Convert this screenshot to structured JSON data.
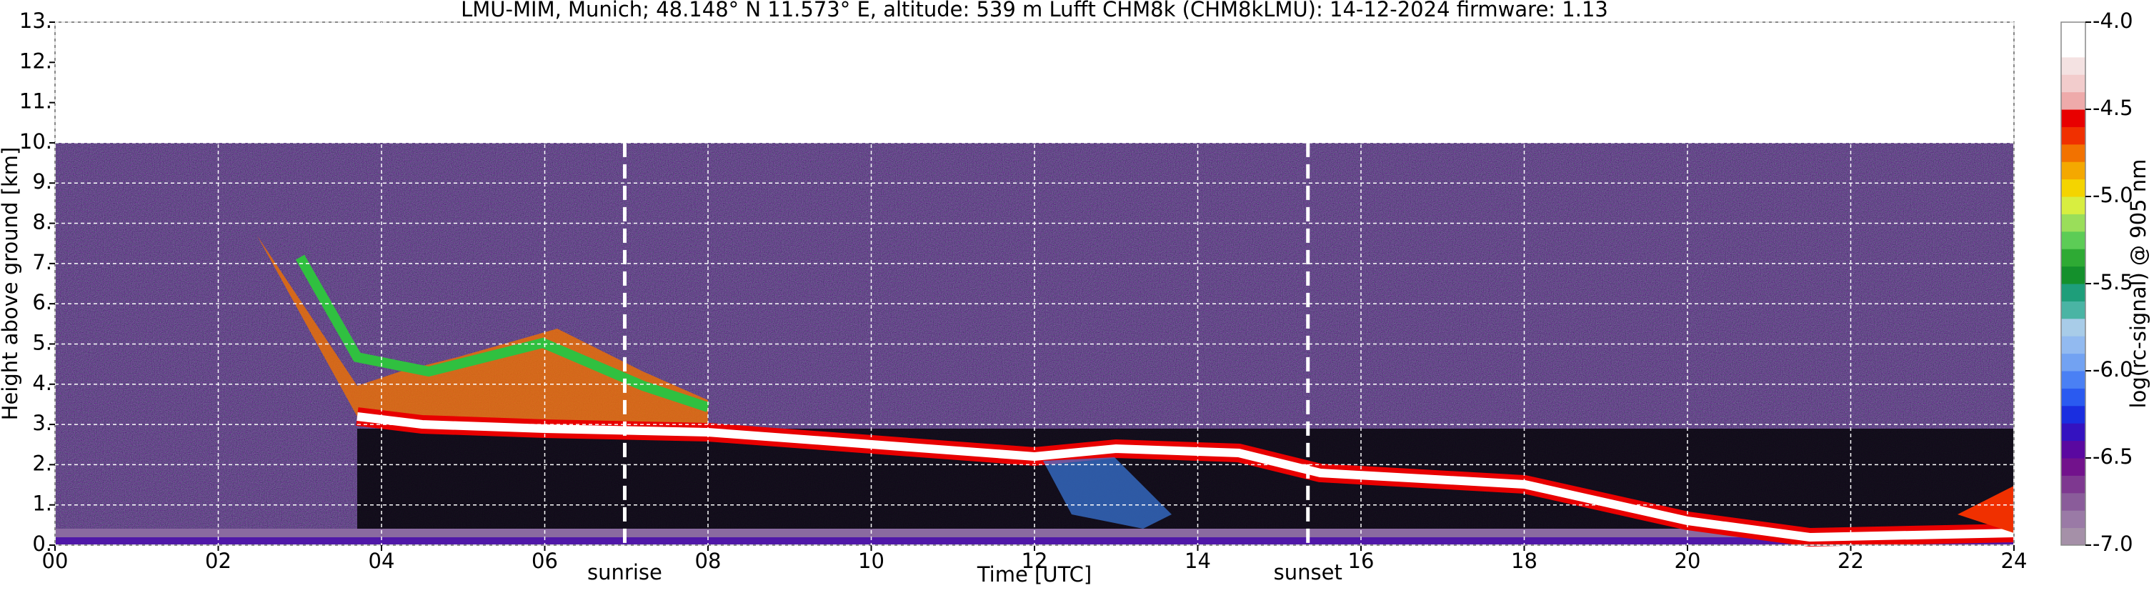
{
  "chart_data": {
    "type": "heatmap",
    "title": "LMU-MIM, Munich; 48.148° N 11.573° E, altitude: 539 m    Lufft CHM8k (CHM8kLMU): 14-12-2024    firmware: 1.13",
    "x_label": "Time [UTC]",
    "y_label": "Height above ground [km]",
    "xlim": [
      0,
      24
    ],
    "xticks": [
      {
        "value": 0,
        "label": "00"
      },
      {
        "value": 2,
        "label": "02"
      },
      {
        "value": 4,
        "label": "04"
      },
      {
        "value": 6,
        "label": "06"
      },
      {
        "value": 8,
        "label": "08"
      },
      {
        "value": 10,
        "label": "10"
      },
      {
        "value": 12,
        "label": "12"
      },
      {
        "value": 14,
        "label": "14"
      },
      {
        "value": 16,
        "label": "16"
      },
      {
        "value": 18,
        "label": "18"
      },
      {
        "value": 20,
        "label": "20"
      },
      {
        "value": 22,
        "label": "22"
      },
      {
        "value": 24,
        "label": "24"
      }
    ],
    "ylim": [
      0,
      13
    ],
    "yticks": [
      {
        "value": 0,
        "label": "0."
      },
      {
        "value": 1,
        "label": "1."
      },
      {
        "value": 2,
        "label": "2."
      },
      {
        "value": 3,
        "label": "3."
      },
      {
        "value": 4,
        "label": "4."
      },
      {
        "value": 5,
        "label": "5."
      },
      {
        "value": 6,
        "label": "6."
      },
      {
        "value": 7,
        "label": "7."
      },
      {
        "value": 8,
        "label": "8."
      },
      {
        "value": 9,
        "label": "9."
      },
      {
        "value": 10,
        "label": "10."
      },
      {
        "value": 11,
        "label": "11."
      },
      {
        "value": 12,
        "label": "12."
      },
      {
        "value": 13,
        "label": "13."
      }
    ],
    "grid": true,
    "annotations": [
      {
        "text": "sunrise",
        "x": 6.98
      },
      {
        "text": "sunset",
        "x": 15.35
      }
    ],
    "colorbar": {
      "label": "log(rc-signal) @ 905 nm",
      "lim": [
        -7,
        -4
      ],
      "ticks": [
        {
          "value": -4,
          "label": "-4.0"
        },
        -4.5,
        {
          "value": -5,
          "label": "-5.0"
        },
        -5.5,
        {
          "value": -6,
          "label": "-6.0"
        },
        -6.5,
        {
          "value": -7,
          "label": "-7.0"
        }
      ],
      "colors": [
        "#a590a8",
        "#9a7aa6",
        "#8a5c9a",
        "#7e3890",
        "#72128c",
        "#5a08a0",
        "#3412c0",
        "#1a2ee0",
        "#2a5af0",
        "#4a80f4",
        "#72a2f2",
        "#92baf0",
        "#a8cce8",
        "#4ab4a4",
        "#1e9e7a",
        "#14902c",
        "#2eaa34",
        "#5ccc56",
        "#9ade5a",
        "#d8ee40",
        "#f4d400",
        "#f4a800",
        "#f27200",
        "#f03000",
        "#e80000",
        "#eeaaaa",
        "#f2cccc",
        "#f4e2e2",
        "#ffffff",
        "#ffffff"
      ]
    }
  }
}
